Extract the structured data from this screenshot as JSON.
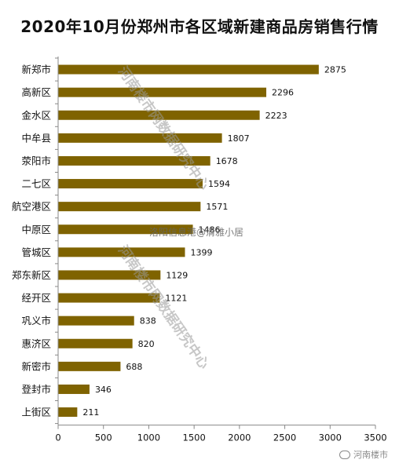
{
  "title": "2020年10月份郑州市各区域新建商品房销售行情",
  "chart_data": {
    "type": "bar",
    "orientation": "horizontal",
    "categories": [
      "新郑市",
      "高新区",
      "金水区",
      "中牟县",
      "荥阳市",
      "二七区",
      "航空港区",
      "中原区",
      "管城区",
      "郑东新区",
      "经开区",
      "巩义市",
      "惠济区",
      "新密市",
      "登封市",
      "上街区"
    ],
    "values": [
      2875,
      2296,
      2223,
      1807,
      1678,
      1594,
      1571,
      1486,
      1399,
      1129,
      1121,
      838,
      820,
      688,
      346,
      211
    ],
    "xlim": [
      0,
      3500
    ],
    "xticks": [
      0,
      500,
      1000,
      1500,
      2000,
      2500,
      3000,
      3500
    ],
    "bar_color": "#7f6300",
    "grid": false
  },
  "watermarks": {
    "upper": "河南楼市网数据研究中心",
    "lower": "河南楼市网数据研究中心",
    "center": "洛阳信息港@清雅小居"
  },
  "logo": {
    "icon": "wechat-icon",
    "text": "河南楼市"
  }
}
